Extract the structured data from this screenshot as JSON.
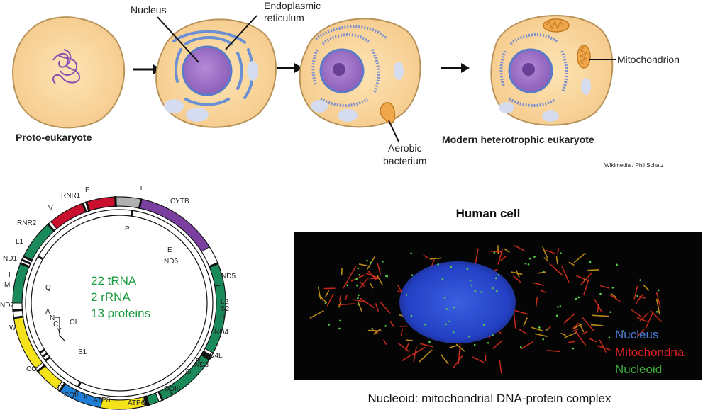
{
  "endosymbiosis": {
    "nucleus_label": "Nucleus",
    "er_label": "Endoplasmic\nreticulum",
    "proto_label": "Proto-eukaryote",
    "bacterium_label": "Aerobic\nbacterium",
    "modern_label": "Modern heterotrophic eukaryote",
    "mito_label": "Mitochondrion",
    "credit": "Wikimedia / Phil Schatz"
  },
  "mtdna": {
    "genes_outer": [
      "F",
      "RNR1",
      "V",
      "RNR2",
      "L1",
      "ND1",
      "I",
      "M",
      "ND2",
      "W",
      "COI",
      "D",
      "COII",
      "K",
      "ATP8",
      "ATP6",
      "COIII",
      "G",
      "ND3",
      "R",
      "ND4L",
      "ND4",
      "H",
      "S2",
      "L2",
      "ND5",
      "ND6",
      "E",
      "CYTB",
      "T"
    ],
    "genes_inner": [
      "P",
      "Q",
      "A",
      "N",
      "C",
      "Y",
      "OL",
      "S1"
    ],
    "center_lines": [
      "22 tRNA",
      "2 rRNA",
      "13 proteins"
    ],
    "colors": {
      "rrna": "#c8102e",
      "complex1": "#1b8a5a",
      "complex3": "#7b3fa0",
      "complex4": "#f4e21b",
      "atp": "#1f7fd6",
      "trna": "#111111",
      "control": "#b0b0b0"
    }
  },
  "human_cell": {
    "title": "Human cell",
    "legend": [
      {
        "label": "Nucleus",
        "color": "#4d7bd6"
      },
      {
        "label": "Mitochondria",
        "color": "#e02020"
      },
      {
        "label": "Nucleoid",
        "color": "#3fae3f"
      }
    ],
    "caption": "Nucleoid: mitochondrial DNA-protein complex"
  }
}
